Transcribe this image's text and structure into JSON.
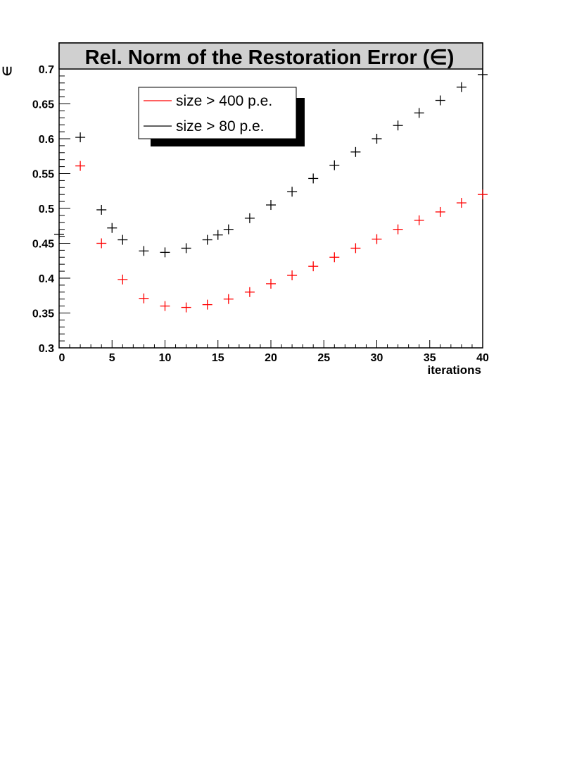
{
  "chart_data": {
    "type": "scatter",
    "title": "Rel. Norm of the Restoration Error (∈)",
    "xlabel": "iterations",
    "ylabel": "∈",
    "xlim": [
      0,
      40
    ],
    "ylim": [
      0.3,
      0.7
    ],
    "x_ticks": [
      0,
      5,
      10,
      15,
      20,
      25,
      30,
      35,
      40
    ],
    "x_tick_labels": [
      "0",
      "5",
      "10",
      "15",
      "20",
      "25",
      "30",
      "35",
      "40"
    ],
    "y_ticks": [
      0.3,
      0.35,
      0.4,
      0.45,
      0.5,
      0.55,
      0.6,
      0.65,
      0.7
    ],
    "y_tick_labels": [
      "0.3",
      "0.35",
      "0.4",
      "0.45",
      "0.5",
      "0.55",
      "0.6",
      "0.65",
      "0.7"
    ],
    "grid": false,
    "legend_position": "top-left",
    "series": [
      {
        "name": "size > 400 p.e.",
        "color": "#ff0000",
        "marker": "cross",
        "x": [
          2,
          4,
          6,
          8,
          10,
          12,
          14,
          16,
          18,
          20,
          22,
          24,
          26,
          28,
          30,
          32,
          34,
          36,
          38,
          40
        ],
        "y": [
          0.561,
          0.45,
          0.398,
          0.371,
          0.36,
          0.358,
          0.362,
          0.37,
          0.38,
          0.392,
          0.404,
          0.417,
          0.43,
          0.443,
          0.456,
          0.47,
          0.483,
          0.495,
          0.508,
          0.52
        ]
      },
      {
        "name": "size > 80 p.e.",
        "color": "#000000",
        "marker": "cross",
        "x": [
          0,
          2,
          4,
          5,
          6,
          8,
          10,
          12,
          14,
          15,
          16,
          18,
          20,
          22,
          24,
          26,
          28,
          30,
          32,
          34,
          36,
          38,
          40
        ],
        "y": [
          0.463,
          0.602,
          0.498,
          0.472,
          0.455,
          0.439,
          0.437,
          0.443,
          0.455,
          0.462,
          0.47,
          0.486,
          0.505,
          0.524,
          0.543,
          0.562,
          0.581,
          0.6,
          0.619,
          0.637,
          0.655,
          0.674,
          0.692
        ]
      }
    ]
  }
}
